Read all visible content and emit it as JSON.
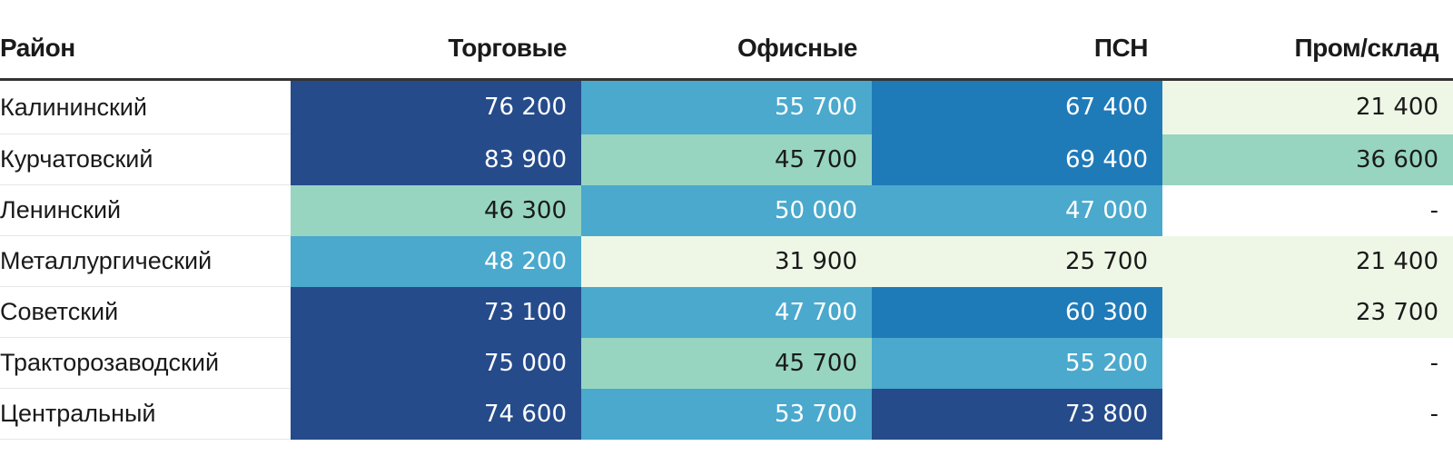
{
  "chart_data": {
    "type": "table",
    "columns": [
      "Район",
      "Торговые",
      "Офисные",
      "ПСН",
      "Пром/склад"
    ],
    "rows": [
      {
        "name": "Калининский",
        "values": [
          "76 200",
          "55 700",
          "67 400",
          "21 400"
        ]
      },
      {
        "name": "Курчатовский",
        "values": [
          "83 900",
          "45 700",
          "69 400",
          "36 600"
        ]
      },
      {
        "name": "Ленинский",
        "values": [
          "46 300",
          "50 000",
          "47 000",
          "-"
        ]
      },
      {
        "name": "Металлургический",
        "values": [
          "48 200",
          "31 900",
          "25 700",
          "21 400"
        ]
      },
      {
        "name": "Советский",
        "values": [
          "73 100",
          "47 700",
          "60 300",
          "23 700"
        ]
      },
      {
        "name": "Тракторозаводский",
        "values": [
          "75 000",
          "45 700",
          "55 200",
          "-"
        ]
      },
      {
        "name": "Центральный",
        "values": [
          "74 600",
          "53 700",
          "73 800",
          "-"
        ]
      }
    ],
    "color_scale": {
      "navy": "#254b8b",
      "blue": "#1f7ab8",
      "light_blue": "#4aa9cd",
      "mint": "#97d5c1",
      "pale": "#eef7e6",
      "none": "#ffffff",
      "light_text": "#ffffff",
      "dark_text": "#1a1a1a"
    },
    "cell_colors": [
      [
        "navy",
        "light_blue",
        "blue",
        "pale"
      ],
      [
        "navy",
        "mint",
        "blue",
        "mint"
      ],
      [
        "mint",
        "light_blue",
        "light_blue",
        "none"
      ],
      [
        "light_blue",
        "pale",
        "pale",
        "pale"
      ],
      [
        "navy",
        "light_blue",
        "blue",
        "pale"
      ],
      [
        "navy",
        "mint",
        "light_blue",
        "none"
      ],
      [
        "navy",
        "light_blue",
        "navy",
        "none"
      ]
    ]
  }
}
